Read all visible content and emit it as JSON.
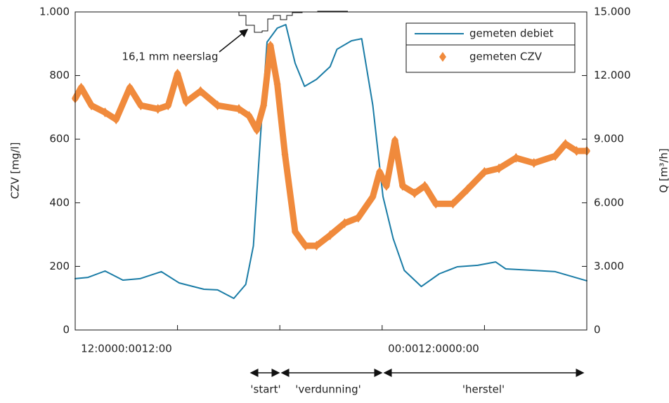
{
  "chart_data": {
    "type": "line",
    "y_label": "CZV [mg/l]",
    "y2_label": "Q [m³/h]",
    "xlim": [
      0,
      60
    ],
    "xticks": [
      0,
      12,
      24,
      36,
      48,
      60
    ],
    "xtick_label_groups": [
      "12:0000:0012:00",
      "00:0012:0000:00"
    ],
    "ylim": [
      0,
      1000
    ],
    "yticks": [
      0,
      200,
      400,
      600,
      800,
      {
        "value": 1000,
        "label": "1.000"
      }
    ],
    "y2lim": [
      0,
      15000
    ],
    "y2ticks": [
      0,
      {
        "value": 3000,
        "label": "3.000"
      },
      {
        "value": 6000,
        "label": "6.000"
      },
      {
        "value": 9000,
        "label": "9.000"
      },
      {
        "value": 12000,
        "label": "12.000"
      },
      {
        "value": 15000,
        "label": "15.000"
      }
    ],
    "series": [
      {
        "name": "gemeten debiet",
        "color": "#1a7ca6",
        "axis": "y2",
        "x": [
          0,
          1.5,
          3.5,
          5.6,
          7.6,
          10.1,
          12.2,
          15.1,
          16.7,
          18.6,
          20.0,
          20.9,
          21.7,
          22.5,
          23.7,
          24.7,
          25.8,
          26.9,
          28.3,
          29.9,
          30.7,
          32.4,
          33.6,
          34.9,
          36.1,
          37.3,
          38.6,
          40.6,
          42.7,
          44.8,
          47.2,
          49.3,
          50.5,
          53.8,
          56.3,
          60
        ],
        "values": [
          2420,
          2480,
          2780,
          2350,
          2420,
          2750,
          2220,
          1920,
          1890,
          1490,
          2150,
          3970,
          8940,
          13580,
          14240,
          14400,
          12580,
          11490,
          11820,
          12420,
          13240,
          13640,
          13740,
          10600,
          6290,
          4300,
          2810,
          2050,
          2650,
          2980,
          3050,
          3210,
          2880,
          2810,
          2750,
          2320
        ]
      },
      {
        "name": "gemeten CZV",
        "color": "#f08a3c",
        "axis": "y",
        "x": [
          0,
          0.7,
          1.9,
          3.5,
          4.8,
          6.4,
          7.7,
          9.7,
          10.9,
          12.0,
          13.0,
          14.7,
          16.7,
          19.2,
          20.4,
          21.3,
          22.1,
          22.9,
          23.7,
          24.6,
          25.8,
          27.0,
          28.3,
          29.9,
          31.6,
          33.2,
          34.9,
          35.7,
          36.5,
          37.5,
          38.4,
          39.8,
          41.0,
          42.3,
          44.3,
          46.0,
          48.0,
          49.7,
          51.7,
          53.8,
          56.3,
          57.5,
          58.8,
          60
        ],
        "values": [
          728,
          762,
          706,
          684,
          662,
          762,
          706,
          695,
          706,
          806,
          717,
          751,
          706,
          695,
          673,
          629,
          706,
          894,
          773,
          552,
          309,
          265,
          265,
          298,
          336,
          353,
          419,
          497,
          453,
          596,
          453,
          430,
          453,
          397,
          397,
          442,
          497,
          508,
          541,
          525,
          547,
          585,
          563,
          563
        ]
      }
    ],
    "annotations": [
      "16,1 mm neerslag",
      "'start'",
      "'verdunning'",
      "'herstel'"
    ]
  }
}
